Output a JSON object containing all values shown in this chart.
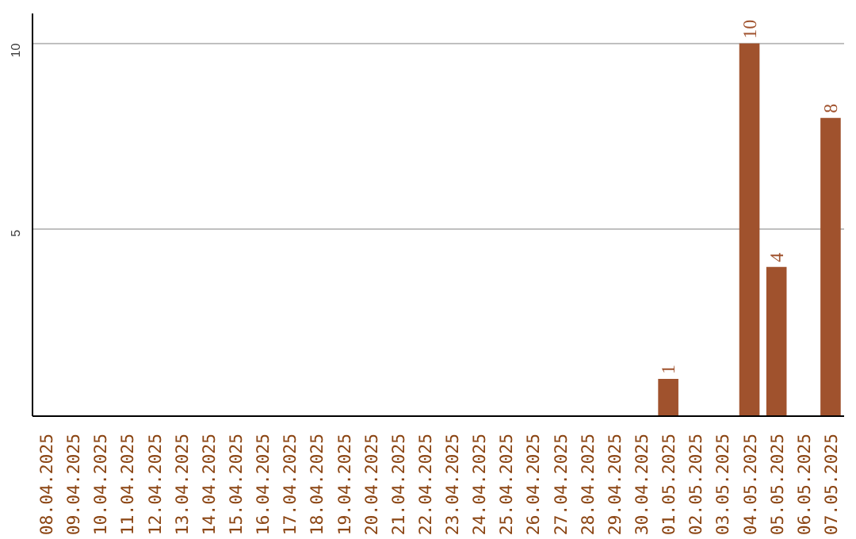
{
  "chart_data": {
    "type": "bar",
    "categories": [
      "08.04.2025",
      "09.04.2025",
      "10.04.2025",
      "11.04.2025",
      "12.04.2025",
      "13.04.2025",
      "14.04.2025",
      "15.04.2025",
      "16.04.2025",
      "17.04.2025",
      "18.04.2025",
      "19.04.2025",
      "20.04.2025",
      "21.04.2025",
      "22.04.2025",
      "23.04.2025",
      "24.04.2025",
      "25.04.2025",
      "26.04.2025",
      "27.04.2025",
      "28.04.2025",
      "29.04.2025",
      "30.04.2025",
      "01.05.2025",
      "02.05.2025",
      "03.05.2025",
      "04.05.2025",
      "05.05.2025",
      "06.05.2025",
      "07.05.2025"
    ],
    "values": [
      0,
      0,
      0,
      0,
      0,
      0,
      0,
      0,
      0,
      0,
      0,
      0,
      0,
      0,
      0,
      0,
      0,
      0,
      0,
      0,
      0,
      0,
      0,
      1,
      0,
      0,
      10,
      4,
      0,
      8
    ],
    "value_labels": [
      null,
      null,
      null,
      null,
      null,
      null,
      null,
      null,
      null,
      null,
      null,
      null,
      null,
      null,
      null,
      null,
      null,
      null,
      null,
      null,
      null,
      null,
      null,
      "1",
      null,
      null,
      "10",
      "4",
      null,
      "8"
    ],
    "color": "#a0522d",
    "ylim": [
      0,
      10.8
    ],
    "yticks": [
      5,
      10
    ],
    "grid": "y"
  }
}
